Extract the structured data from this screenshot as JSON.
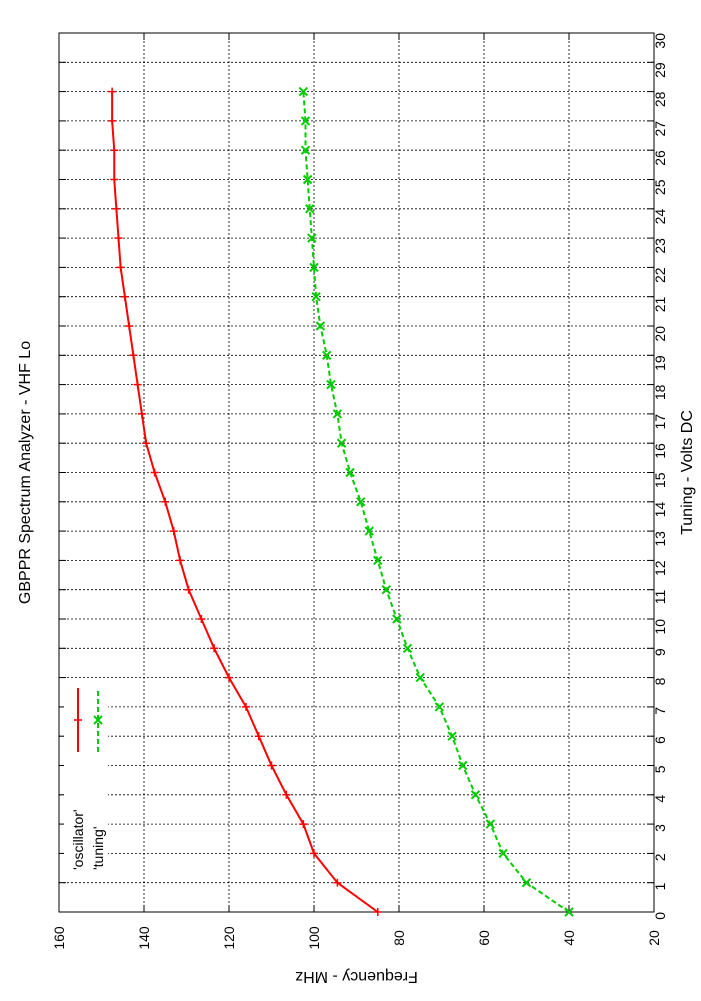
{
  "chart_data": {
    "type": "line",
    "title": "GBPPR Spectrum Analyzer  -  VHF Lo",
    "xlabel": "Tuning  -  Volts DC",
    "ylabel": "Frequency  -  MHz",
    "xlim": [
      0,
      30
    ],
    "ylim": [
      20,
      160
    ],
    "x_ticks": [
      "0",
      "1",
      "2",
      "3",
      "4",
      "5",
      "6",
      "7",
      "8",
      "9",
      "10",
      "11",
      "12",
      "13",
      "14",
      "15",
      "16",
      "17",
      "18",
      "19",
      "20",
      "21",
      "22",
      "23",
      "24",
      "25",
      "26",
      "27",
      "28",
      "29",
      "30"
    ],
    "y_ticks": [
      "20",
      "40",
      "60",
      "80",
      "100",
      "120",
      "140",
      "160"
    ],
    "grid": true,
    "legend_position": "top-left",
    "rotated": true,
    "series": [
      {
        "name": "'oscillator'",
        "color": "#ff0000",
        "marker": "+",
        "line_style": "solid",
        "x": [
          0,
          1,
          2,
          3,
          4,
          5,
          6,
          7,
          8,
          9,
          10,
          11,
          12,
          13,
          14,
          15,
          16,
          17,
          18,
          19,
          20,
          21,
          22,
          23,
          24,
          25,
          26,
          27,
          28
        ],
        "values": [
          85,
          94.5,
          100,
          102.5,
          106.5,
          110,
          113,
          116,
          120,
          123.5,
          126.5,
          129.5,
          131.5,
          133,
          135,
          137.5,
          139.5,
          140.5,
          141.5,
          142.5,
          143.5,
          144.5,
          145.5,
          146,
          146.5,
          147,
          147,
          147.5,
          147.5
        ]
      },
      {
        "name": "'tuning'",
        "color": "#00cc00",
        "marker": "x",
        "line_style": "dashed",
        "x": [
          0,
          1,
          2,
          3,
          4,
          5,
          6,
          7,
          8,
          9,
          10,
          11,
          12,
          13,
          14,
          15,
          16,
          17,
          18,
          19,
          20,
          21,
          22,
          23,
          24,
          25,
          26,
          27,
          28
        ],
        "values": [
          40,
          50,
          55.5,
          58.5,
          62,
          65,
          67.5,
          70.5,
          75,
          78,
          80.5,
          83,
          85,
          87,
          89,
          91.5,
          93.5,
          94.5,
          96,
          97,
          98.5,
          99.5,
          100,
          100.5,
          101,
          101.5,
          102,
          102,
          102.5
        ]
      }
    ]
  }
}
